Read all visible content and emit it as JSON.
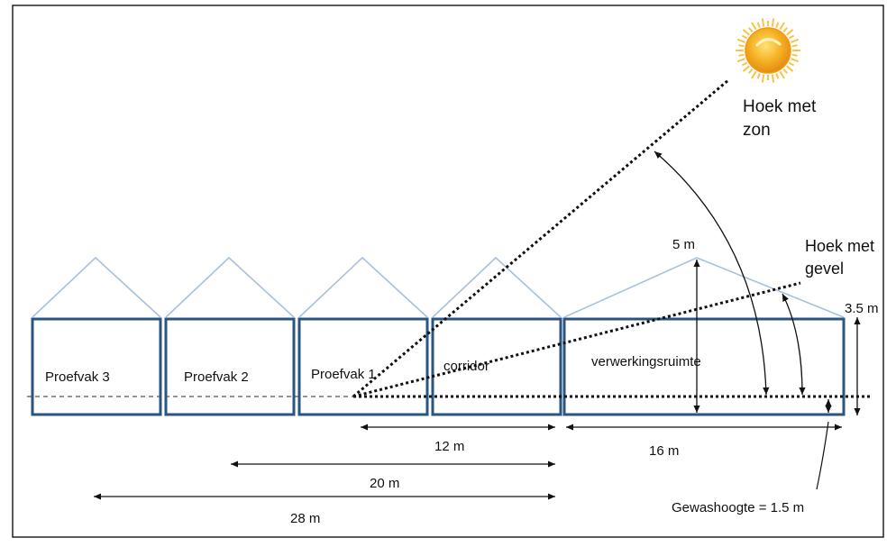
{
  "diagram": {
    "rooms": [
      {
        "label": "Proefvak 3"
      },
      {
        "label": "Proefvak 2"
      },
      {
        "label": "Proefvak 1"
      },
      {
        "label": "corridor"
      },
      {
        "label": "verwerkingsruimte"
      }
    ],
    "annotations": {
      "sun_angle_line1": "Hoek met",
      "sun_angle_line2": "zon",
      "facade_angle_line1": "Hoek met",
      "facade_angle_line2": "gevel",
      "ridge_height": "5 m",
      "eave_height": "3.5 m",
      "crop_height": "Gewashoogte = 1.5 m"
    },
    "dimensions": [
      {
        "label": "12 m"
      },
      {
        "label": "16 m"
      },
      {
        "label": "20 m"
      },
      {
        "label": "28 m"
      }
    ],
    "colors": {
      "wall": "#2a5580",
      "roof": "#a9c1dc",
      "line": "#111111",
      "sun_core": "#f3a51a",
      "sun_rays": "#f7c447"
    },
    "icons": {
      "sun": "sun-icon"
    }
  }
}
